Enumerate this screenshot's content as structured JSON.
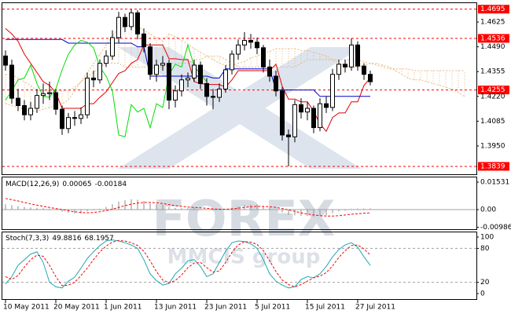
{
  "chart_data": [
    {
      "type": "candlestick",
      "categories": [
        "10 May 2011",
        null,
        null,
        null,
        null,
        null,
        null,
        null,
        "20 May 2011",
        null,
        null,
        null,
        null,
        null,
        null,
        null,
        "1 Jun 2011",
        null,
        null,
        null,
        null,
        null,
        null,
        null,
        "13 Jun 2011",
        null,
        null,
        null,
        null,
        null,
        null,
        null,
        "23 Jun 2011",
        null,
        null,
        null,
        null,
        null,
        null,
        null,
        "5 Jul 2011",
        null,
        null,
        null,
        null,
        null,
        null,
        null,
        "15 Jul 2011",
        null,
        null,
        null,
        null,
        null,
        null,
        null,
        "27 Jul 2011",
        null,
        null,
        null,
        null,
        null,
        null,
        null,
        null,
        null,
        null,
        null,
        null,
        null,
        null,
        null,
        null,
        null
      ],
      "open": [
        1.444,
        1.439,
        1.421,
        1.417,
        1.412,
        1.4155,
        1.4225,
        1.4235,
        1.424,
        1.415,
        1.4045,
        1.4105,
        1.41,
        1.412,
        1.432,
        1.431,
        1.44,
        1.444,
        1.454,
        1.465,
        1.46,
        1.4675,
        1.456,
        1.449,
        1.434,
        1.439,
        1.44,
        1.42,
        1.425,
        1.431,
        1.432,
        1.439,
        1.429,
        1.422,
        1.4215,
        1.426,
        1.4365,
        1.445,
        1.45,
        1.4525,
        1.4515,
        1.4485,
        1.438,
        1.433,
        1.425,
        1.401,
        1.4,
        1.4175,
        1.4135,
        1.4155,
        1.405,
        1.418,
        1.416,
        1.434,
        1.4395,
        1.438,
        1.45,
        1.4385,
        1.434,
        null,
        null,
        null,
        null,
        null,
        null,
        null,
        null,
        null,
        null,
        null,
        null,
        null,
        null,
        null
      ],
      "high": [
        1.447,
        1.442,
        1.426,
        1.42,
        1.419,
        1.426,
        1.429,
        1.43,
        1.426,
        1.417,
        1.413,
        1.414,
        1.416,
        1.435,
        1.436,
        1.442,
        1.447,
        1.458,
        1.468,
        1.467,
        1.4695,
        1.469,
        1.459,
        1.451,
        1.442,
        1.444,
        1.442,
        1.428,
        1.434,
        1.435,
        1.442,
        1.441,
        1.432,
        1.426,
        1.429,
        1.439,
        1.447,
        1.453,
        1.457,
        1.456,
        1.454,
        1.45,
        1.442,
        1.436,
        1.427,
        1.404,
        1.42,
        1.421,
        1.419,
        1.417,
        1.421,
        1.422,
        1.437,
        1.442,
        1.442,
        1.4536,
        1.452,
        1.44,
        1.436,
        null,
        null,
        null,
        null,
        null,
        null,
        null,
        null,
        null,
        null,
        null,
        null,
        null,
        null,
        null
      ],
      "low": [
        1.436,
        1.418,
        1.414,
        1.409,
        1.409,
        1.413,
        1.418,
        1.42,
        1.412,
        1.401,
        1.402,
        1.406,
        1.407,
        1.41,
        1.427,
        1.429,
        1.438,
        1.442,
        1.451,
        1.457,
        1.458,
        1.453,
        1.446,
        1.431,
        1.43,
        1.436,
        1.415,
        1.416,
        1.422,
        1.427,
        1.43,
        1.426,
        1.417,
        1.415,
        1.419,
        1.424,
        1.434,
        1.442,
        1.447,
        1.448,
        1.445,
        1.435,
        1.43,
        1.422,
        1.398,
        1.3839,
        1.397,
        1.41,
        1.409,
        1.402,
        1.403,
        1.413,
        1.414,
        1.431,
        1.435,
        1.436,
        1.436,
        1.431,
        1.428,
        null,
        null,
        null,
        null,
        null,
        null,
        null,
        null,
        null,
        null,
        null,
        null,
        null,
        null,
        null
      ],
      "close": [
        1.439,
        1.421,
        1.417,
        1.412,
        1.4155,
        1.4225,
        1.4235,
        1.424,
        1.415,
        1.4045,
        1.4105,
        1.41,
        1.412,
        1.432,
        1.431,
        1.44,
        1.444,
        1.454,
        1.465,
        1.46,
        1.4675,
        1.456,
        1.449,
        1.434,
        1.439,
        1.44,
        1.42,
        1.425,
        1.431,
        1.432,
        1.439,
        1.429,
        1.422,
        1.4215,
        1.426,
        1.4365,
        1.445,
        1.45,
        1.4525,
        1.4515,
        1.4485,
        1.438,
        1.433,
        1.425,
        1.401,
        1.4,
        1.4175,
        1.4135,
        1.4155,
        1.405,
        1.418,
        1.416,
        1.434,
        1.4395,
        1.438,
        1.45,
        1.4385,
        1.434,
        1.43,
        null,
        null,
        null,
        null,
        null,
        null,
        null,
        null,
        null,
        null,
        null,
        null,
        null,
        null,
        null
      ],
      "up_color": "#ffffff",
      "down_color": "#000000",
      "outline_color": "#000000",
      "lines": [
        {
          "color": "#e00000",
          "values": [
            1.459,
            1.456,
            1.452,
            1.445,
            1.44,
            1.435,
            1.43,
            1.428,
            1.424,
            1.4155,
            1.4155,
            1.4155,
            1.4155,
            1.418,
            1.418,
            1.4215,
            1.4245,
            1.4295,
            1.4345,
            1.436,
            1.44,
            1.442,
            1.45,
            1.45,
            1.45,
            1.45,
            1.4425,
            1.4425,
            1.442,
            1.442,
            1.43,
            1.429,
            1.4285,
            1.4285,
            1.4285,
            1.427,
            1.431,
            1.436,
            1.436,
            1.436,
            1.436,
            1.436,
            1.436,
            1.4395,
            1.4275,
            1.4205,
            1.4205,
            1.419,
            1.419,
            1.414,
            1.407,
            1.403,
            1.4105,
            1.413,
            1.413,
            1.419,
            1.419,
            1.428,
            1.432,
            null,
            null,
            null,
            null,
            null,
            null,
            null,
            null,
            null,
            null,
            null,
            null,
            null,
            null,
            null
          ]
        },
        {
          "color": "#0000c8",
          "values": [
            1.453,
            1.453,
            1.453,
            1.453,
            1.453,
            1.453,
            1.453,
            1.453,
            1.453,
            1.453,
            1.451,
            1.451,
            1.451,
            1.451,
            1.451,
            1.451,
            1.451,
            1.451,
            1.451,
            1.451,
            1.451,
            1.449,
            1.449,
            1.433,
            1.433,
            1.433,
            1.433,
            1.433,
            1.433,
            1.433,
            1.433,
            1.433,
            1.433,
            1.432,
            1.432,
            1.437,
            1.437,
            1.437,
            1.437,
            1.437,
            1.437,
            1.437,
            1.437,
            1.4255,
            1.4255,
            1.4255,
            1.4255,
            1.4255,
            1.4255,
            1.4255,
            1.422,
            1.422,
            1.422,
            1.422,
            1.422,
            1.422,
            1.422,
            1.422,
            1.422,
            null,
            null,
            null,
            null,
            null,
            null,
            null,
            null,
            null,
            null,
            null,
            null,
            null,
            null,
            null
          ]
        },
        {
          "color": "#00dd00",
          "values": [
            1.42,
            1.425,
            1.431,
            1.432,
            1.439,
            1.429,
            1.422,
            1.4215,
            1.426,
            1.4365,
            1.445,
            1.45,
            1.4525,
            1.4515,
            1.4485,
            1.438,
            1.433,
            1.425,
            1.401,
            1.4,
            1.4175,
            1.4135,
            1.4155,
            1.405,
            1.418,
            1.416,
            1.434,
            1.4395,
            1.438,
            1.45,
            1.4385,
            1.434,
            1.43,
            null,
            null,
            null,
            null,
            null,
            null,
            null,
            null,
            null,
            null,
            null,
            null,
            null,
            null,
            null,
            null,
            null,
            null,
            null,
            null,
            null,
            null,
            null,
            null,
            null,
            null,
            null,
            null,
            null,
            null,
            null,
            null,
            null,
            null,
            null,
            null,
            null,
            null,
            null,
            null,
            null
          ]
        }
      ],
      "cloud": {
        "color": "#e8b880",
        "span_a": [
          1.418,
          1.417,
          1.416,
          1.415,
          1.414,
          1.414,
          1.415,
          1.416,
          1.417,
          1.418,
          1.42,
          1.425,
          1.43,
          1.435,
          1.44,
          1.445,
          1.45,
          1.455,
          1.459,
          1.46,
          1.461,
          1.46,
          1.458,
          1.456,
          1.454,
          1.452,
          1.456,
          1.4545,
          1.4525,
          1.4505,
          1.448,
          1.446,
          1.444,
          1.442,
          1.44,
          1.439,
          1.439,
          1.44,
          1.441,
          1.443,
          1.444,
          1.4455,
          1.4465,
          1.448,
          1.448,
          1.448,
          1.448,
          1.447,
          1.447,
          1.446,
          1.445,
          1.444,
          1.442,
          1.44,
          1.439,
          1.438,
          1.438,
          1.439,
          1.44,
          1.44,
          1.439,
          1.438,
          1.436,
          1.434,
          1.432,
          1.431,
          1.431,
          1.43,
          1.429,
          1.428,
          1.427,
          1.426,
          1.424,
          1.422
        ],
        "span_b": [
          1.434,
          1.434,
          1.432,
          1.43,
          1.428,
          1.425,
          1.425,
          1.425,
          1.425,
          1.425,
          1.425,
          1.427,
          1.43,
          1.433,
          1.435,
          1.438,
          1.44,
          1.44,
          1.44,
          1.438,
          1.438,
          1.438,
          1.438,
          1.438,
          1.438,
          1.438,
          1.44,
          1.44,
          1.44,
          1.44,
          1.442,
          1.442,
          1.444,
          1.444,
          1.444,
          1.442,
          1.44,
          1.438,
          1.438,
          1.438,
          1.438,
          1.438,
          1.438,
          1.438,
          1.438,
          1.438,
          1.438,
          1.44,
          1.442,
          1.442,
          1.442,
          1.442,
          1.442,
          1.442,
          1.442,
          1.442,
          1.442,
          1.441,
          1.44,
          1.439,
          1.438,
          1.437,
          1.437,
          1.437,
          1.437,
          1.436,
          1.436,
          1.436,
          1.436,
          1.436,
          1.436,
          1.436,
          1.436,
          1.436
        ]
      },
      "levels": [
        1.4695,
        1.4536,
        1.4255,
        1.3839
      ],
      "level_color": "#ff0000",
      "ylim": [
        1.3796,
        1.4732
      ],
      "yticks": [
        1.4625,
        {
          "value": 1.449,
          "label": "1.4490"
        },
        1.4355,
        {
          "value": 1.422,
          "label": "1.4220"
        },
        1.4085,
        {
          "value": 1.395,
          "label": "1.3950"
        }
      ],
      "watermark": "FOREX",
      "watermark_sub": "MMCIS group"
    },
    {
      "type": "macd",
      "title": "MACD(12,26,9)",
      "color": "#a0a0a0",
      "values": [
        0.003,
        0.0025,
        0.002,
        0.0015,
        0.0012,
        0.001,
        0.0008,
        0.0005,
        0.0,
        -0.0012,
        -0.0018,
        -0.0022,
        -0.0022,
        -0.001,
        -0.0005,
        0.0005,
        0.0015,
        0.003,
        0.0045,
        0.0052,
        0.0058,
        0.0055,
        0.0048,
        0.0035,
        0.003,
        0.0028,
        0.0015,
        0.001,
        0.0008,
        0.0008,
        0.001,
        0.0005,
        -0.0002,
        -0.0005,
        -0.0003,
        0.0002,
        0.001,
        0.0018,
        0.0025,
        0.0028,
        0.0028,
        0.002,
        0.0012,
        0.0002,
        -0.0015,
        -0.003,
        -0.0032,
        -0.0035,
        -0.0036,
        -0.004,
        -0.0035,
        -0.0032,
        -0.002,
        -0.001,
        -0.0006,
        0.0004,
        0.0006,
        0.0006,
        0.00065
      ],
      "signal": {
        "color": "#ff0000",
        "values": [
          0.0062,
          0.0055,
          0.0048,
          0.004,
          0.0032,
          0.0025,
          0.0018,
          0.0012,
          0.0006,
          0.0,
          -0.0006,
          -0.0012,
          -0.0016,
          -0.0018,
          -0.0016,
          -0.0012,
          -0.0006,
          0.0002,
          0.0012,
          0.0022,
          0.003,
          0.0036,
          0.004,
          0.004,
          0.0038,
          0.0034,
          0.0028,
          0.0022,
          0.0018,
          0.0014,
          0.0012,
          0.001,
          0.0007,
          0.0004,
          0.0002,
          0.0002,
          0.0004,
          0.0008,
          0.0012,
          0.0016,
          0.0018,
          0.0018,
          0.0016,
          0.0012,
          0.0006,
          -0.0002,
          -0.001,
          -0.0018,
          -0.0025,
          -0.003,
          -0.0034,
          -0.0036,
          -0.0036,
          -0.0034,
          -0.003,
          -0.0026,
          -0.0023,
          -0.002,
          -0.00184
        ]
      },
      "ylim": [
        -0.01094,
        0.01837
      ],
      "yticks": [
        0.01531,
        {
          "value": 0,
          "label": "0.00"
        },
        -0.00986
      ],
      "zero_line": true
    },
    {
      "type": "line",
      "title": "Stoch(7,3,3)",
      "series": [
        {
          "color": "#20a8b0",
          "values": [
            17,
            30,
            50,
            60,
            70,
            74,
            55,
            20,
            12,
            10,
            22,
            29,
            45,
            62,
            74,
            85,
            93,
            95,
            93,
            90,
            86,
            80,
            60,
            35,
            23,
            15,
            18,
            35,
            45,
            58,
            60,
            48,
            30,
            35,
            55,
            75,
            90,
            93,
            92,
            88,
            80,
            60,
            35,
            22,
            15,
            10,
            12,
            25,
            30,
            28,
            35,
            48,
            65,
            78,
            86,
            90,
            82,
            65,
            49.8816
          ]
        },
        {
          "color": "#ff0000",
          "dash": true,
          "values": [
            30,
            25,
            32,
            47,
            60,
            68,
            66,
            50,
            30,
            14,
            15,
            20,
            32,
            45,
            60,
            74,
            84,
            91,
            94,
            93,
            90,
            85,
            75,
            58,
            39,
            24,
            19,
            23,
            33,
            46,
            54,
            55,
            46,
            38,
            40,
            55,
            73,
            86,
            92,
            91,
            87,
            76,
            58,
            39,
            24,
            16,
            12,
            16,
            22,
            28,
            31,
            37,
            49,
            64,
            76,
            85,
            86,
            79,
            68.1957
          ]
        }
      ],
      "ylim": [
        0,
        100
      ],
      "yticks": [
        100,
        80,
        20,
        0
      ],
      "levels": [
        80,
        20
      ]
    }
  ]
}
